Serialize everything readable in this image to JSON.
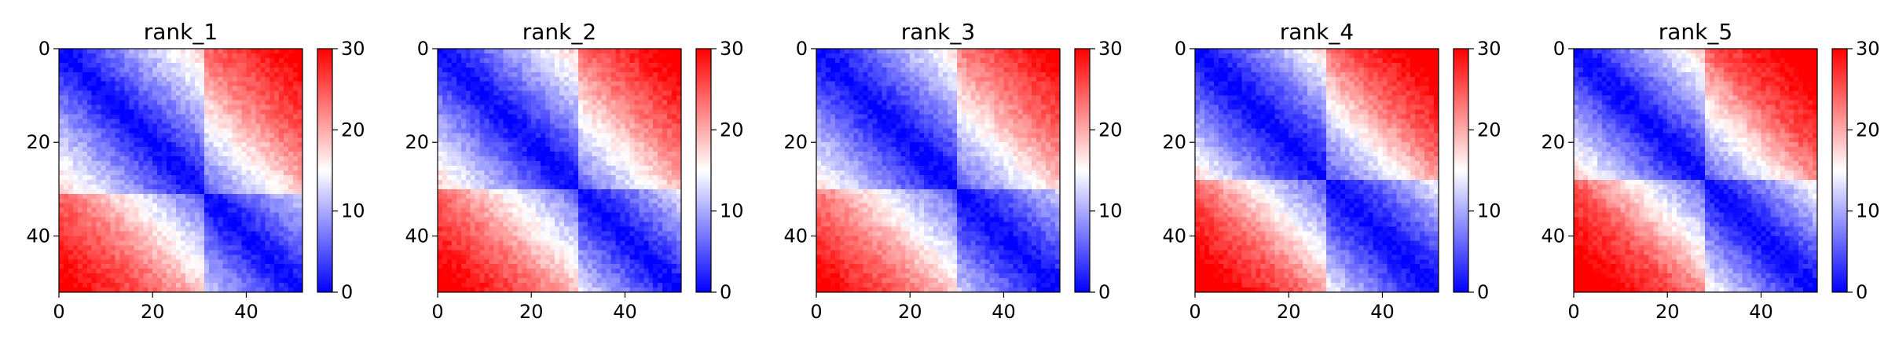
{
  "chart_data": [
    {
      "type": "heatmap",
      "title": "rank_1",
      "xlabel": "",
      "ylabel": "",
      "size": 52,
      "x_ticks": [
        0,
        20,
        40
      ],
      "y_ticks": [
        0,
        20,
        40
      ],
      "colorbar": {
        "min": 0,
        "max": 30,
        "ticks": [
          0,
          10,
          20,
          30
        ],
        "colormap": "bwr",
        "colors": [
          "#0000ff",
          "#ffffff",
          "#ff0000"
        ]
      },
      "cells": "symmetric distance matrix, value grows with |i-j|: ~0 on diagonal, ~28 at far corners",
      "profile": {
        "near_diag": 2,
        "offset_10": 8,
        "offset_20": 14,
        "offset_30": 20,
        "offset_50": 28
      },
      "block_boundary": 31
    },
    {
      "type": "heatmap",
      "title": "rank_2",
      "xlabel": "",
      "ylabel": "",
      "size": 52,
      "x_ticks": [
        0,
        20,
        40
      ],
      "y_ticks": [
        0,
        20,
        40
      ],
      "colorbar": {
        "min": 0,
        "max": 30,
        "ticks": [
          0,
          10,
          20,
          30
        ],
        "colormap": "bwr",
        "colors": [
          "#0000ff",
          "#ffffff",
          "#ff0000"
        ]
      },
      "cells": "symmetric distance matrix, value grows with |i-j|: ~0 on diagonal, ~28 at far corners",
      "profile": {
        "near_diag": 2,
        "offset_10": 8,
        "offset_20": 14,
        "offset_30": 20,
        "offset_50": 29
      },
      "block_boundary": 30
    },
    {
      "type": "heatmap",
      "title": "rank_3",
      "xlabel": "",
      "ylabel": "",
      "size": 52,
      "x_ticks": [
        0,
        20,
        40
      ],
      "y_ticks": [
        0,
        20,
        40
      ],
      "colorbar": {
        "min": 0,
        "max": 30,
        "ticks": [
          0,
          10,
          20,
          30
        ],
        "colormap": "bwr",
        "colors": [
          "#0000ff",
          "#ffffff",
          "#ff0000"
        ]
      },
      "cells": "symmetric distance matrix, value grows with |i-j|: ~0 on diagonal, ~28 at far corners",
      "profile": {
        "near_diag": 2,
        "offset_10": 7,
        "offset_20": 13,
        "offset_30": 19,
        "offset_50": 28
      },
      "block_boundary": 30
    },
    {
      "type": "heatmap",
      "title": "rank_4",
      "xlabel": "",
      "ylabel": "",
      "size": 52,
      "x_ticks": [
        0,
        20,
        40
      ],
      "y_ticks": [
        0,
        20,
        40
      ],
      "colorbar": {
        "min": 0,
        "max": 30,
        "ticks": [
          0,
          10,
          20,
          30
        ],
        "colormap": "bwr",
        "colors": [
          "#0000ff",
          "#ffffff",
          "#ff0000"
        ]
      },
      "cells": "symmetric distance matrix, value grows with |i-j|: ~0 on diagonal, ~30 at far corners",
      "profile": {
        "near_diag": 2,
        "offset_10": 7,
        "offset_20": 14,
        "offset_30": 21,
        "offset_50": 30
      },
      "block_boundary": 28
    },
    {
      "type": "heatmap",
      "title": "rank_5",
      "xlabel": "",
      "ylabel": "",
      "size": 52,
      "x_ticks": [
        0,
        20,
        40
      ],
      "y_ticks": [
        0,
        20,
        40
      ],
      "colorbar": {
        "min": 0,
        "max": 30,
        "ticks": [
          0,
          10,
          20,
          30
        ],
        "colormap": "bwr",
        "colors": [
          "#0000ff",
          "#ffffff",
          "#ff0000"
        ]
      },
      "cells": "symmetric distance matrix, value grows with |i-j|: ~0 on diagonal, ~30 at far corners",
      "profile": {
        "near_diag": 2,
        "offset_10": 8,
        "offset_20": 15,
        "offset_30": 22,
        "offset_50": 30
      },
      "block_boundary": 28
    }
  ]
}
